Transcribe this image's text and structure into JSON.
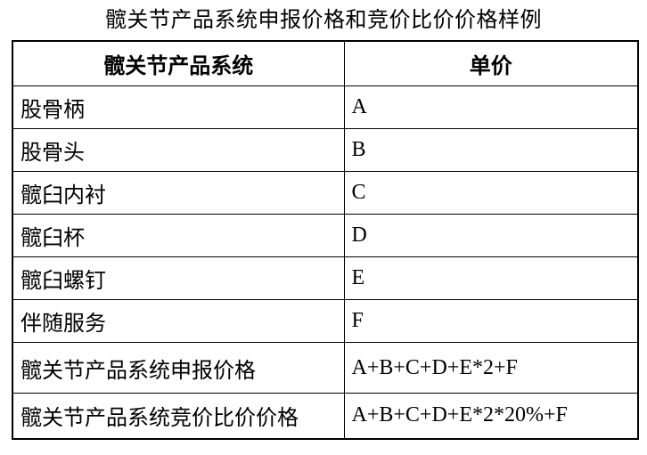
{
  "title": "髋关节产品系统申报价格和竞价比价价格样例",
  "colors": {
    "text": "#000000",
    "border": "#000000",
    "background": "#ffffff"
  },
  "table": {
    "headers": [
      "髋关节产品系统",
      "单价"
    ],
    "rows": [
      [
        "股骨柄",
        "A"
      ],
      [
        "股骨头",
        "B"
      ],
      [
        "髋臼内衬",
        "C"
      ],
      [
        "髋臼杯",
        "D"
      ],
      [
        "髋臼螺钉",
        "E"
      ],
      [
        "伴随服务",
        "F"
      ],
      [
        "髋关节产品系统申报价格",
        "A+B+C+D+E*2+F"
      ],
      [
        "髋关节产品系统竞价比价价格",
        "A+B+C+D+E*2*20%+F"
      ]
    ]
  }
}
